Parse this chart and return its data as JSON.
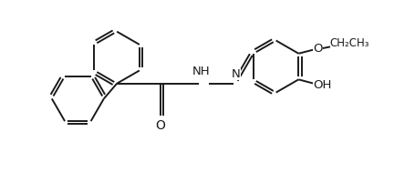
{
  "background_color": "#ffffff",
  "line_color": "#1a1a1a",
  "line_width": 1.4,
  "figsize": [
    4.56,
    2.12
  ],
  "dpi": 100,
  "xlim": [
    0.0,
    9.5
  ],
  "ylim": [
    0.0,
    4.4
  ]
}
